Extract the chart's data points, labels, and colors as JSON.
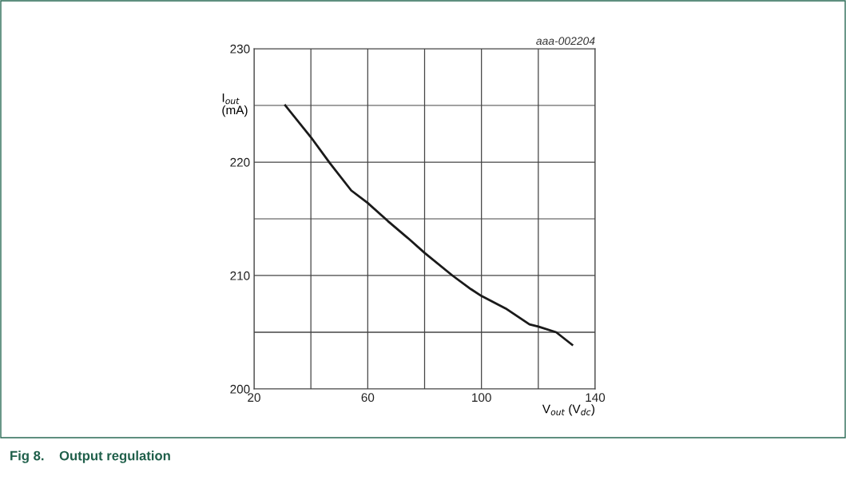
{
  "chart_data": {
    "type": "line",
    "title": "Fig 8.    Output regulation",
    "xlabel": "V$_{out}$ (V$_{dc}$)",
    "ylabel": "I$_{out}$\n(mA)",
    "annotations": [
      "aaa-002204"
    ],
    "x": [
      31.0,
      40,
      46.7,
      54.2,
      60,
      67.1,
      74.6,
      80,
      89.8,
      96.3,
      100,
      108.5,
      116.9,
      120,
      126.3,
      131.9
    ],
    "series": [
      {
        "color": "#1a1a1a",
        "values": [
          225.0,
          222.2,
          219.9,
          217.5,
          216.4,
          214.8,
          213.2,
          212.0,
          210.0,
          208.8,
          208.2,
          207.1,
          205.7,
          205.5,
          205.0,
          203.9
        ]
      }
    ],
    "xlim": [
      20,
      140
    ],
    "ylim": [
      200,
      230
    ],
    "xticks": [
      20,
      60,
      100,
      140
    ],
    "yticks": [
      200,
      210,
      220,
      230
    ],
    "grid": true,
    "legend": false
  }
}
